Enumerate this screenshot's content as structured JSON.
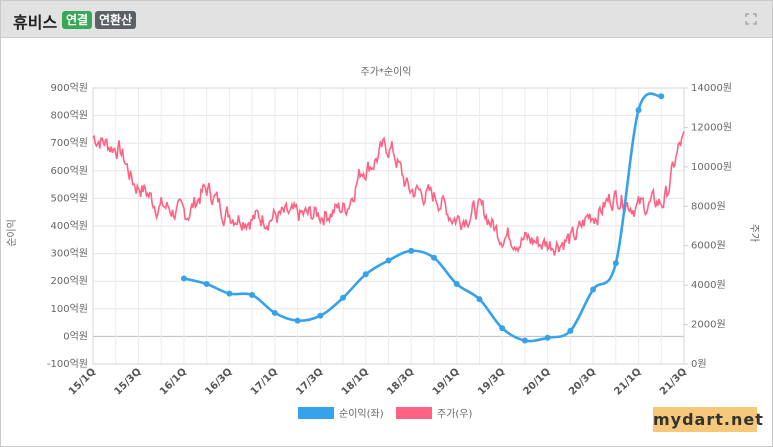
{
  "header": {
    "company": "휴비스",
    "badge_consolidated": "연결",
    "badge_annualized": "연환산",
    "expand_icon": "expand-icon"
  },
  "watermark": "mydart.net",
  "chart_data": {
    "type": "line",
    "title": "주가*순이익",
    "ylabel_left": "순이익",
    "ylabel_right": "주가",
    "left_ticks": [
      "900억원",
      "800억원",
      "700억원",
      "600억원",
      "500억원",
      "400억원",
      "300억원",
      "200억원",
      "100억원",
      "0억원",
      "-100억원"
    ],
    "right_ticks": [
      "14000원",
      "12000원",
      "10000원",
      "8000원",
      "6000원",
      "4000원",
      "2000원",
      "0원"
    ],
    "x_ticks": [
      "15/1Q",
      "15/3Q",
      "16/1Q",
      "16/3Q",
      "17/1Q",
      "17/3Q",
      "18/1Q",
      "18/3Q",
      "19/1Q",
      "19/3Q",
      "20/1Q",
      "20/3Q",
      "21/1Q",
      "21/3Q"
    ],
    "ylim_left": [
      -100,
      900
    ],
    "ylim_right": [
      0,
      14000
    ],
    "legend": [
      {
        "name": "순이익(좌)",
        "color": "#36a2eb"
      },
      {
        "name": "주가(우)",
        "color": "#ff6384"
      }
    ],
    "legend_position": "bottom",
    "series": [
      {
        "name": "순이익(좌)",
        "color": "#36a2eb",
        "x": [
          "16/1Q",
          "16/2Q",
          "16/3Q",
          "16/4Q",
          "17/1Q",
          "17/2Q",
          "17/3Q",
          "17/4Q",
          "18/1Q",
          "18/2Q",
          "18/3Q",
          "18/4Q",
          "19/1Q",
          "19/2Q",
          "19/3Q",
          "19/4Q",
          "20/1Q",
          "20/2Q",
          "20/3Q",
          "20/4Q",
          "21/1Q",
          "21/2Q"
        ],
        "values": [
          210,
          190,
          155,
          150,
          85,
          57,
          75,
          140,
          225,
          275,
          310,
          285,
          190,
          135,
          30,
          -15,
          -5,
          20,
          170,
          265,
          820,
          870
        ]
      },
      {
        "name": "주가(우)",
        "color": "#ff6384",
        "x": [
          "15/1Q",
          "15/2Q",
          "15/3Q",
          "15/4Q",
          "16/1Q",
          "16/2Q",
          "16/3Q",
          "16/4Q",
          "17/1Q",
          "17/2Q",
          "17/3Q",
          "17/4Q",
          "18/1Q",
          "18/2Q",
          "18/3Q",
          "18/4Q",
          "19/1Q",
          "19/2Q",
          "19/3Q",
          "19/4Q",
          "20/1Q",
          "20/2Q",
          "20/3Q",
          "20/4Q",
          "21/1Q",
          "21/2Q",
          "21/3Q"
        ],
        "values": [
          11500,
          11000,
          9000,
          8000,
          7600,
          8800,
          7600,
          7400,
          7500,
          7500,
          7600,
          7900,
          10000,
          11000,
          8800,
          8500,
          7400,
          7800,
          6600,
          6300,
          6100,
          6300,
          7600,
          8500,
          8000,
          8200,
          11300
        ]
      }
    ],
    "grid": true
  }
}
